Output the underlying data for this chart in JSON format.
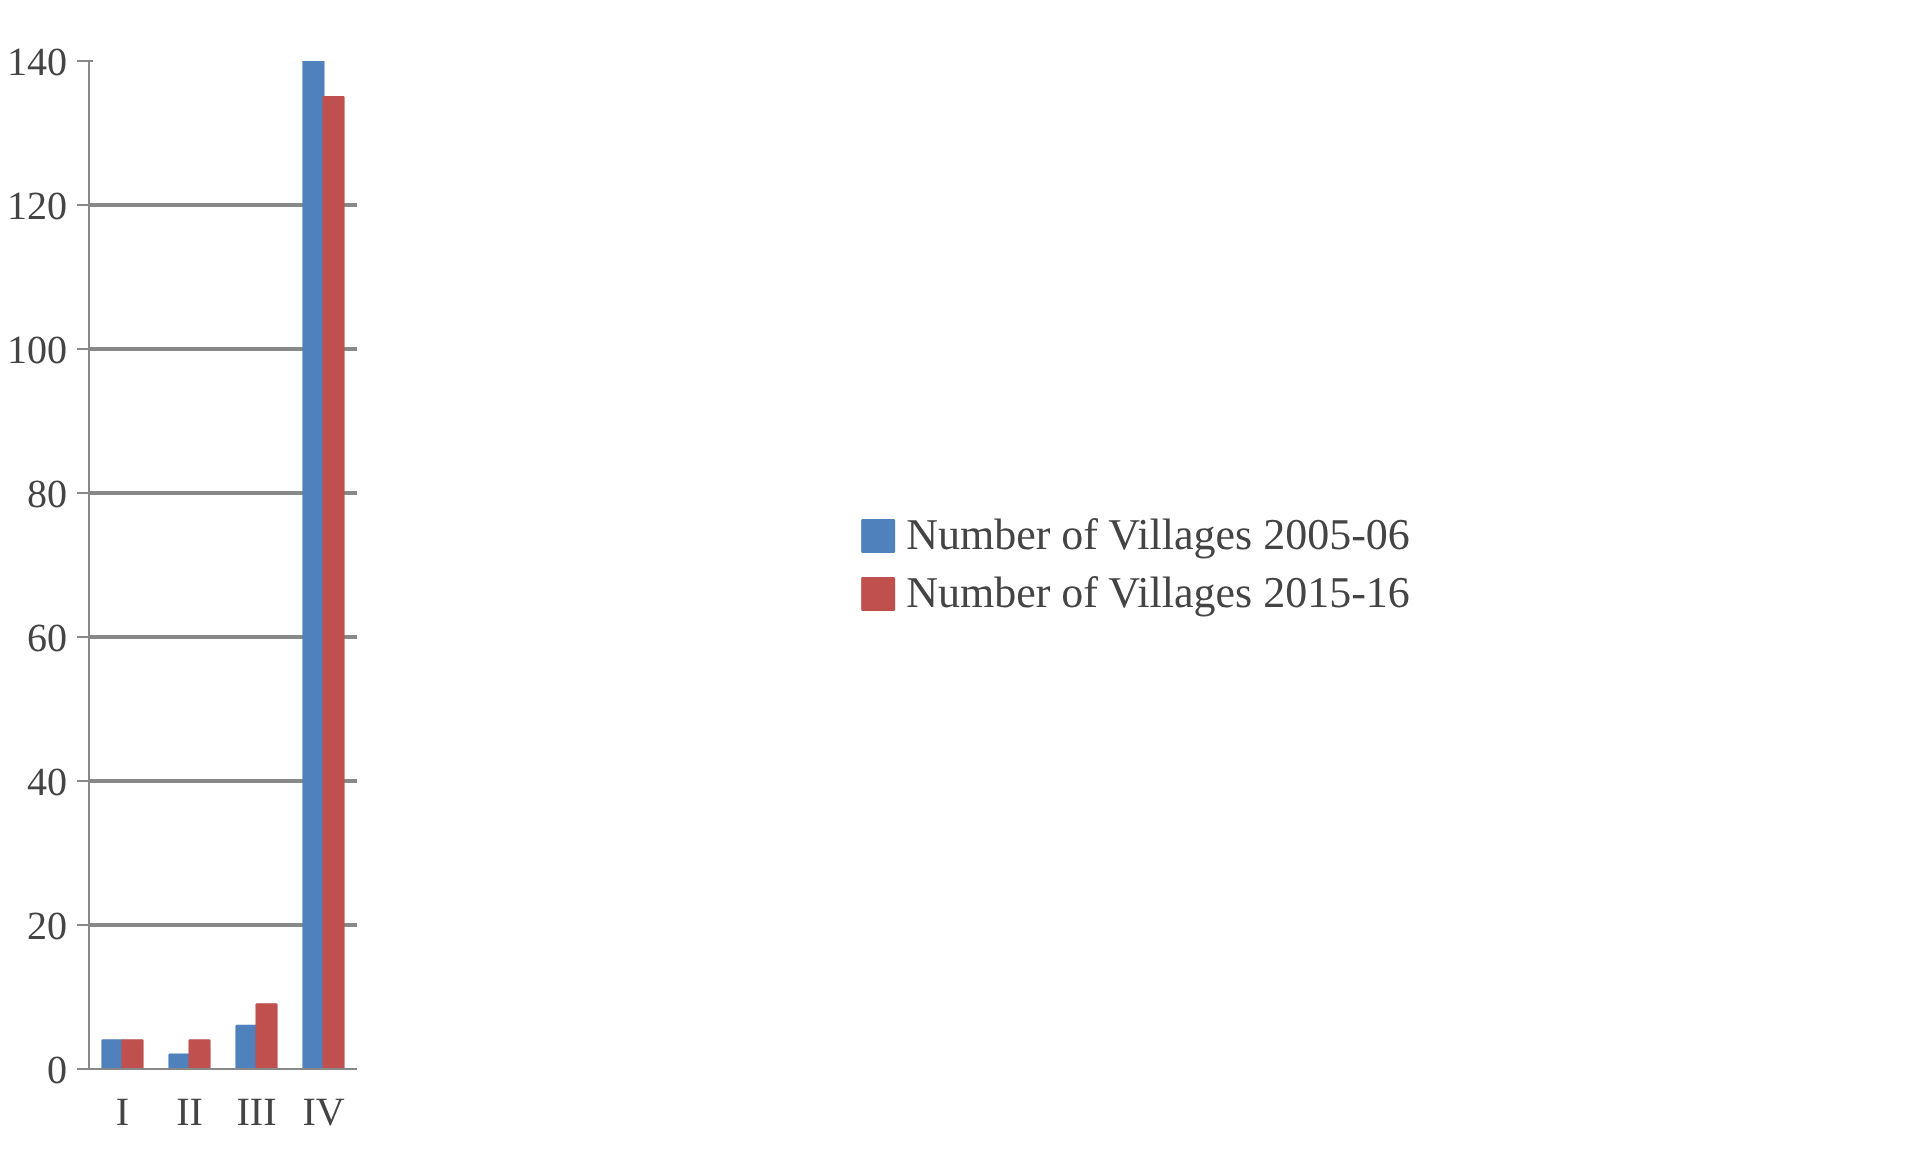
{
  "chart_data": {
    "type": "bar",
    "categories": [
      "I",
      "II",
      "III",
      "IV"
    ],
    "series": [
      {
        "name": "Number of Villages 2005-06",
        "color": "#4f81bd",
        "values": [
          4,
          2,
          6,
          140
        ]
      },
      {
        "name": "Number of Villages 2015-16",
        "color": "#c0504d",
        "values": [
          4,
          4,
          9,
          135
        ]
      }
    ],
    "ylim": [
      0,
      140
    ],
    "yticks": [
      0,
      20,
      40,
      60,
      80,
      100,
      120,
      140
    ],
    "grid": "y",
    "legend": "right"
  }
}
